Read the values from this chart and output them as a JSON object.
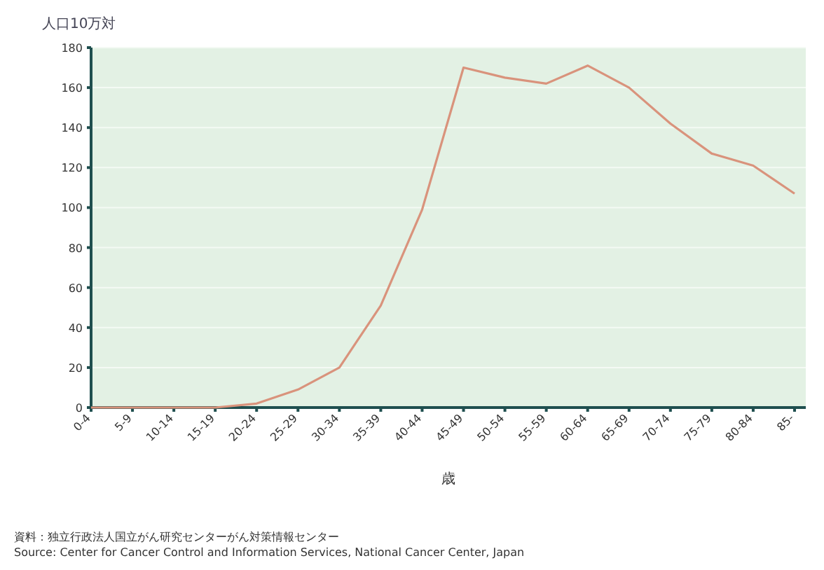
{
  "chart_data": {
    "type": "line",
    "ylabel": "人口10万対",
    "xlabel": "歳",
    "categories": [
      "0-4",
      "5-9",
      "10-14",
      "15-19",
      "20-24",
      "25-29",
      "30-34",
      "35-39",
      "40-44",
      "45-49",
      "50-54",
      "55-59",
      "60-64",
      "65-69",
      "70-74",
      "75-79",
      "80-84",
      "85-"
    ],
    "series": [
      {
        "color": "#d9937c",
        "values": [
          0,
          0,
          0,
          0,
          2,
          9,
          20,
          51,
          99,
          170,
          165,
          162,
          171,
          160,
          142,
          127,
          121,
          107
        ]
      }
    ],
    "ylim": [
      0,
      180
    ],
    "yticks": [
      0,
      20,
      40,
      60,
      80,
      100,
      120,
      140,
      160,
      180
    ],
    "grid": "y",
    "marker": "none",
    "line_style": "solid",
    "annotations": [
      "資料：独立行政法人国立がん研究センターがん対策情報センター",
      "Source: Center for Cancer Control and Information Services, National Cancer Center, Japan"
    ]
  }
}
